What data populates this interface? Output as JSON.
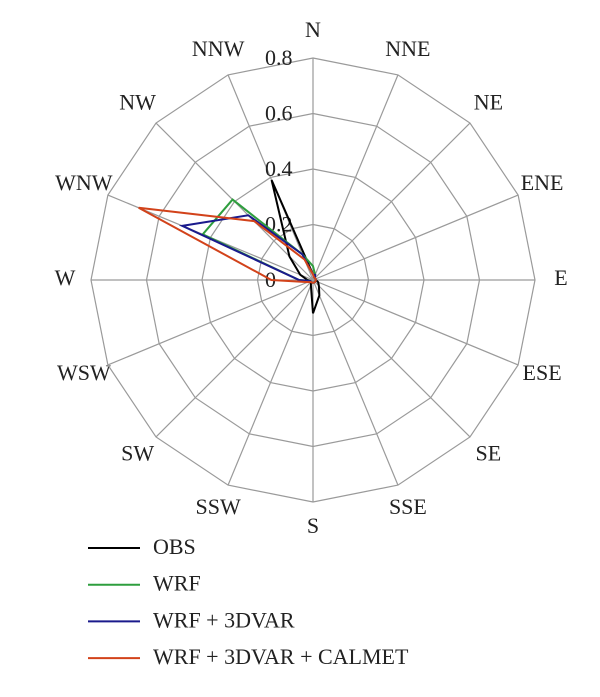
{
  "chart_data": {
    "type": "radar",
    "categories": [
      "N",
      "NNE",
      "NE",
      "ENE",
      "E",
      "ESE",
      "SE",
      "SSE",
      "S",
      "SSW",
      "SW",
      "WSW",
      "W",
      "WNW",
      "NW",
      "NNW"
    ],
    "ylim": [
      0,
      0.8
    ],
    "yticks": [
      0,
      0.2,
      0.4,
      0.6,
      0.8
    ],
    "grid": true,
    "series": [
      {
        "name": "OBS",
        "color": "#000000",
        "values": [
          0.02,
          0.02,
          0.01,
          0.01,
          0.01,
          0.02,
          0.03,
          0.06,
          0.12,
          0.02,
          0.01,
          0.01,
          0.02,
          0.05,
          0.12,
          0.39
        ]
      },
      {
        "name": "WRF",
        "color": "#2e9e3e",
        "values": [
          0.05,
          0.02,
          0.01,
          0.01,
          0.01,
          0.01,
          0.01,
          0.01,
          0.01,
          0.01,
          0.01,
          0.01,
          0.05,
          0.43,
          0.41,
          0.1
        ]
      },
      {
        "name": "WRF + 3DVAR",
        "color": "#1a1a8c",
        "values": [
          0.02,
          0.02,
          0.01,
          0.01,
          0.01,
          0.01,
          0.01,
          0.01,
          0.01,
          0.01,
          0.01,
          0.01,
          0.05,
          0.51,
          0.33,
          0.1
        ]
      },
      {
        "name": "WRF + 3DVAR + CALMET",
        "color": "#d2421a",
        "values": [
          0.02,
          0.01,
          0.01,
          0.01,
          0.01,
          0.01,
          0.01,
          0.01,
          0.01,
          0.01,
          0.01,
          0.02,
          0.15,
          0.68,
          0.3,
          0.08
        ]
      }
    ]
  }
}
